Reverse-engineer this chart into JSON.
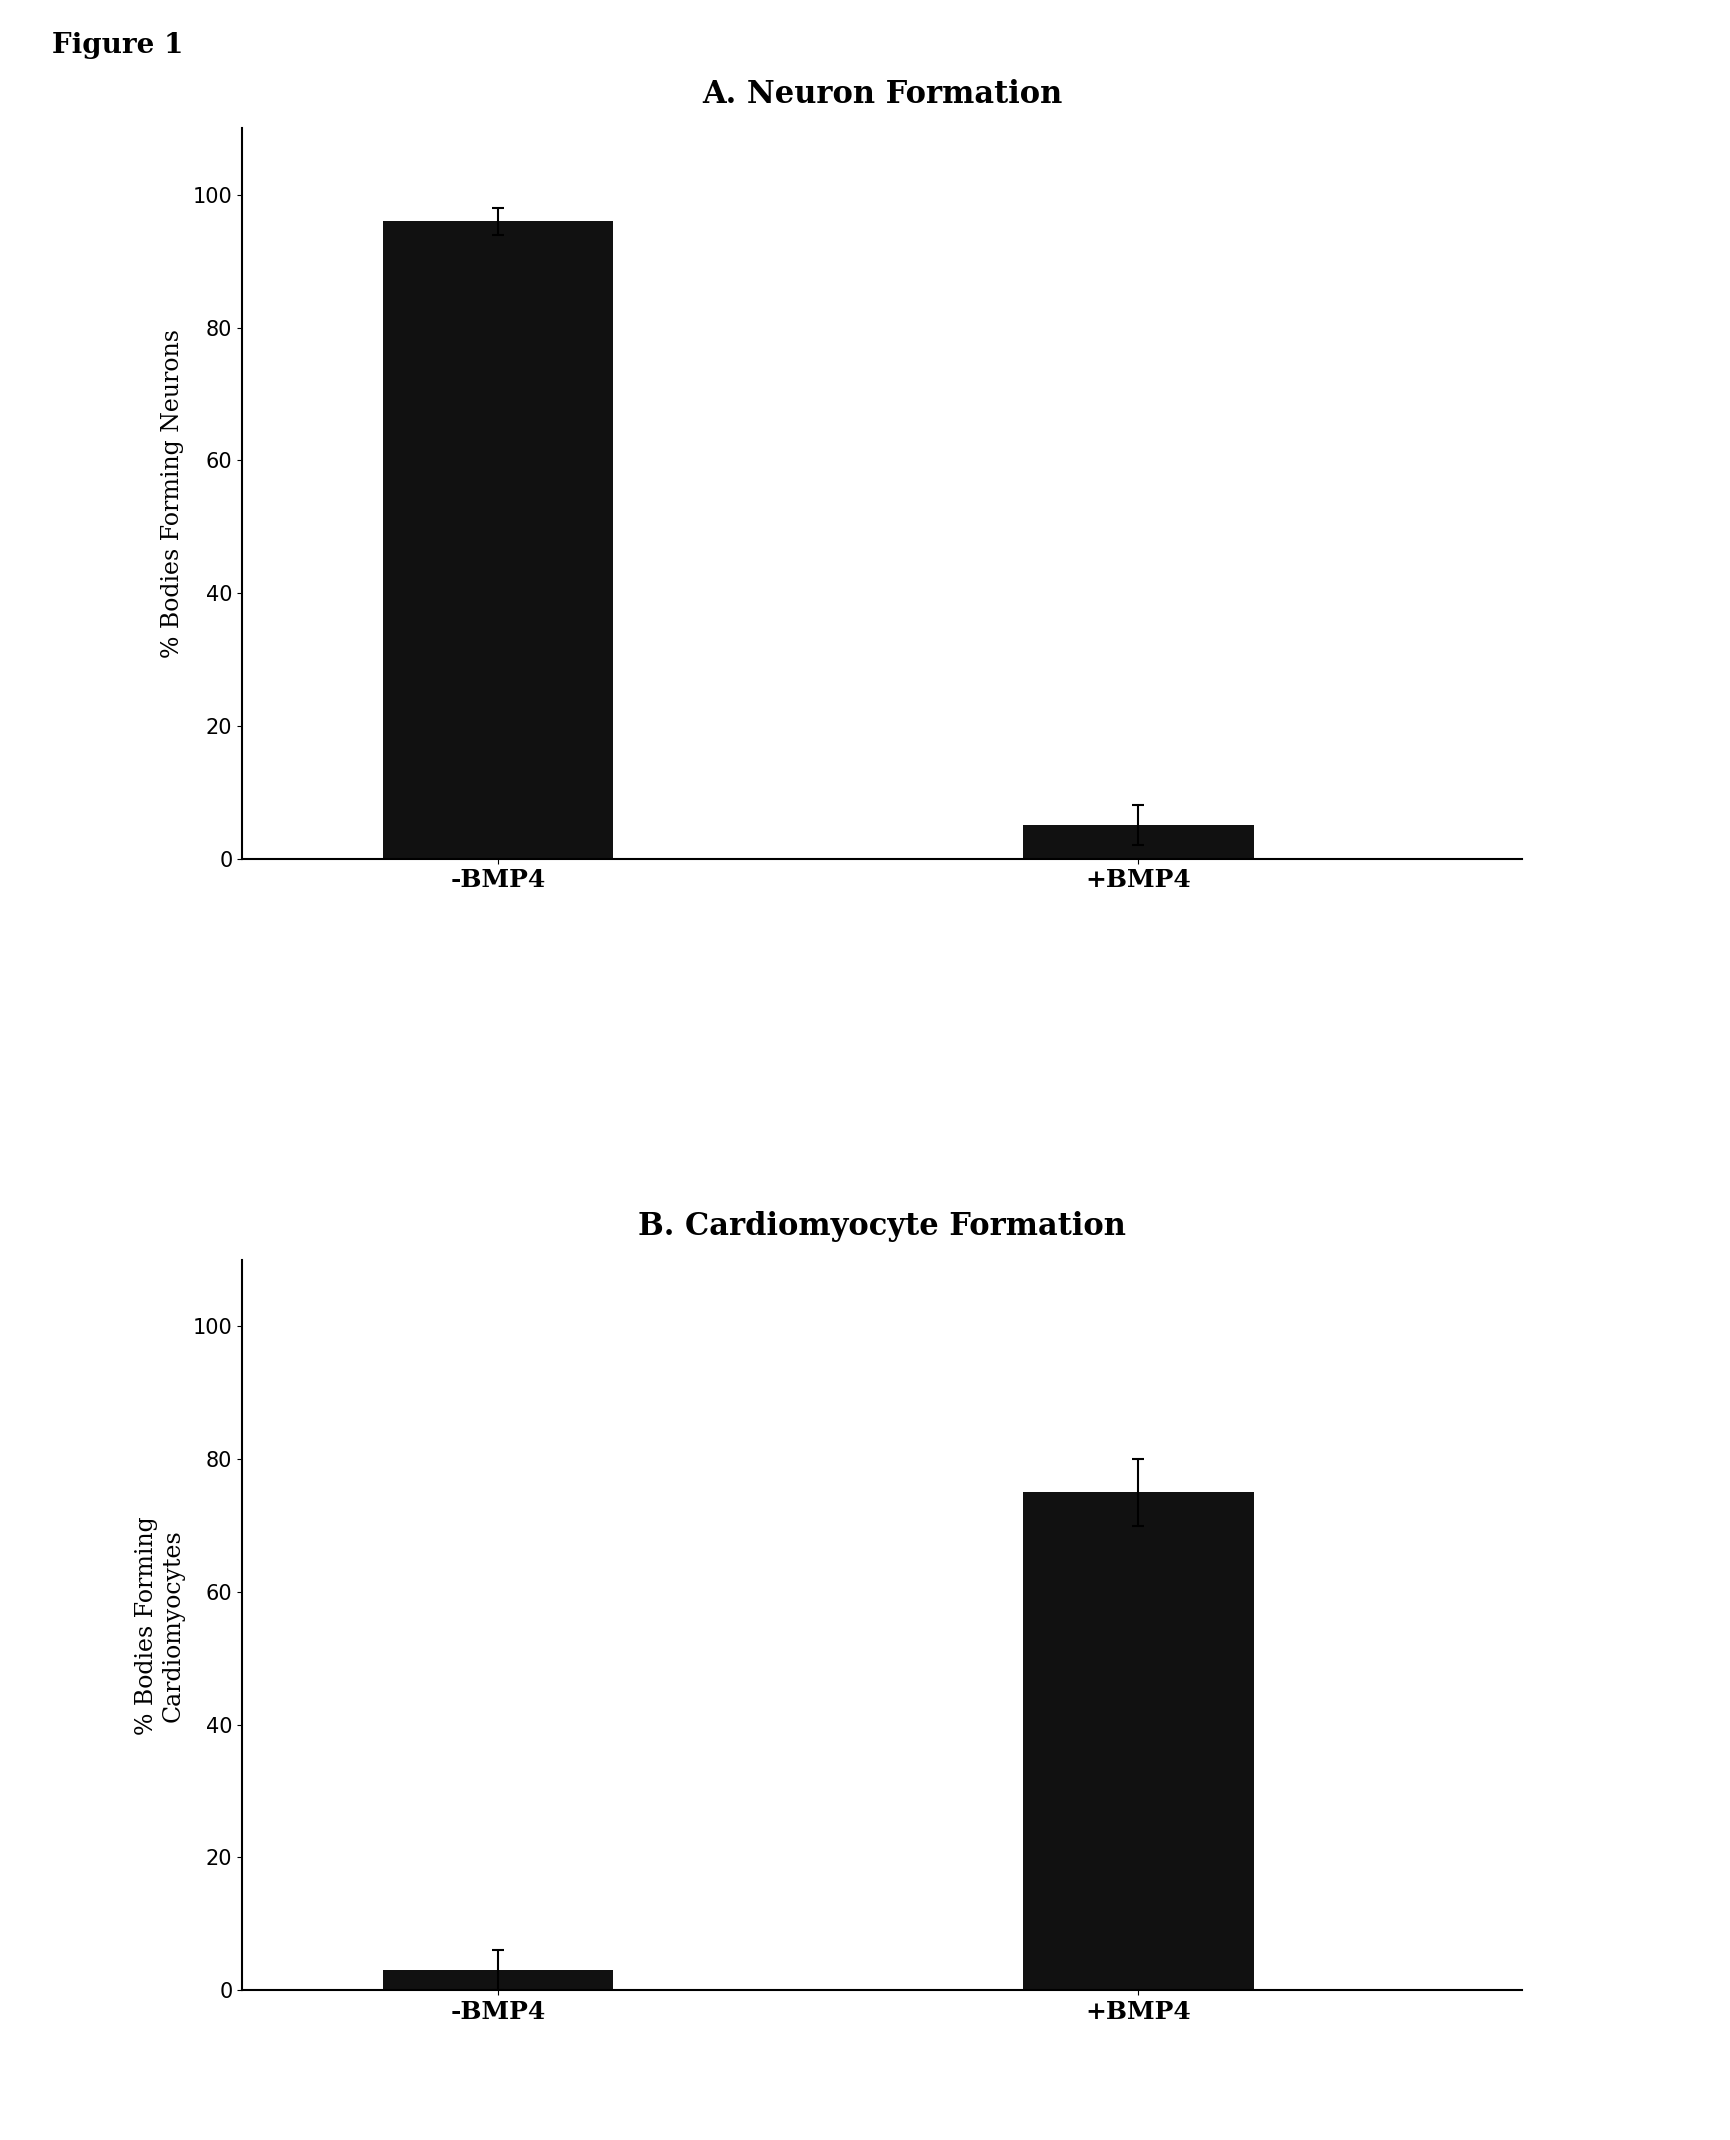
{
  "figure_label": "Figure 1",
  "figure_label_fontsize": 20,
  "figure_label_bold": true,
  "panel_A_title": "A. Neuron Formation",
  "panel_B_title": "B. Cardiomyocyte Formation",
  "panel_title_fontsize": 22,
  "panel_title_bold": true,
  "panel_A": {
    "categories": [
      "-BMP4",
      "+BMP4"
    ],
    "values": [
      96,
      5
    ],
    "errors": [
      2,
      3
    ],
    "ylabel": "% Bodies Forming Neurons",
    "ylim": [
      0,
      110
    ],
    "yticks": [
      0,
      20,
      40,
      60,
      80,
      100
    ],
    "bar_color": "#111111",
    "bar_width": 0.18,
    "x_positions": [
      0.2,
      0.7
    ],
    "xlim": [
      0,
      1.0
    ]
  },
  "panel_B": {
    "categories": [
      "-BMP4",
      "+BMP4"
    ],
    "values": [
      3,
      75
    ],
    "errors": [
      3,
      5
    ],
    "ylabel_line1": "% Bodies Forming",
    "ylabel_line2": "Cardiomyocytes",
    "ylim": [
      0,
      110
    ],
    "yticks": [
      0,
      20,
      40,
      60,
      80,
      100
    ],
    "bar_color": "#111111",
    "bar_width": 0.18,
    "x_positions": [
      0.2,
      0.7
    ],
    "xlim": [
      0,
      1.0
    ]
  },
  "tick_fontsize": 15,
  "xtick_fontsize": 18,
  "label_fontsize": 17,
  "background_color": "#ffffff"
}
